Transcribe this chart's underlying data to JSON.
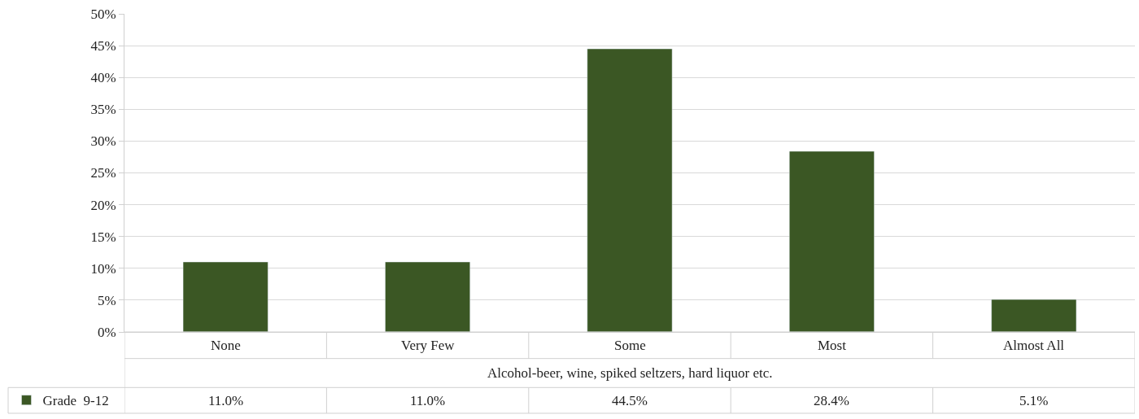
{
  "chart_data": {
    "type": "bar",
    "categories": [
      "None",
      "Very Few",
      "Some",
      "Most",
      "Almost All"
    ],
    "xlabel": "Alcohol-beer, wine, spiked seltzers, hard liquor etc.",
    "series": [
      {
        "name": "Grade  9-12",
        "color": "#3b5724",
        "values": [
          11.0,
          11.0,
          44.5,
          28.4,
          5.1
        ],
        "value_labels": [
          "11.0%",
          "11.0%",
          "44.5%",
          "28.4%",
          "5.1%"
        ]
      }
    ],
    "ylim": [
      0,
      50
    ],
    "yticks": [
      {
        "value": 0,
        "label": "0%"
      },
      {
        "value": 5,
        "label": "5%"
      },
      {
        "value": 10,
        "label": "10%"
      },
      {
        "value": 15,
        "label": "15%"
      },
      {
        "value": 20,
        "label": "20%"
      },
      {
        "value": 25,
        "label": "25%"
      },
      {
        "value": 30,
        "label": "30%"
      },
      {
        "value": 35,
        "label": "35%"
      },
      {
        "value": 40,
        "label": "40%"
      },
      {
        "value": 45,
        "label": "45%"
      },
      {
        "value": 50,
        "label": "50%"
      }
    ],
    "grid": "y",
    "legend": "bottom left"
  }
}
